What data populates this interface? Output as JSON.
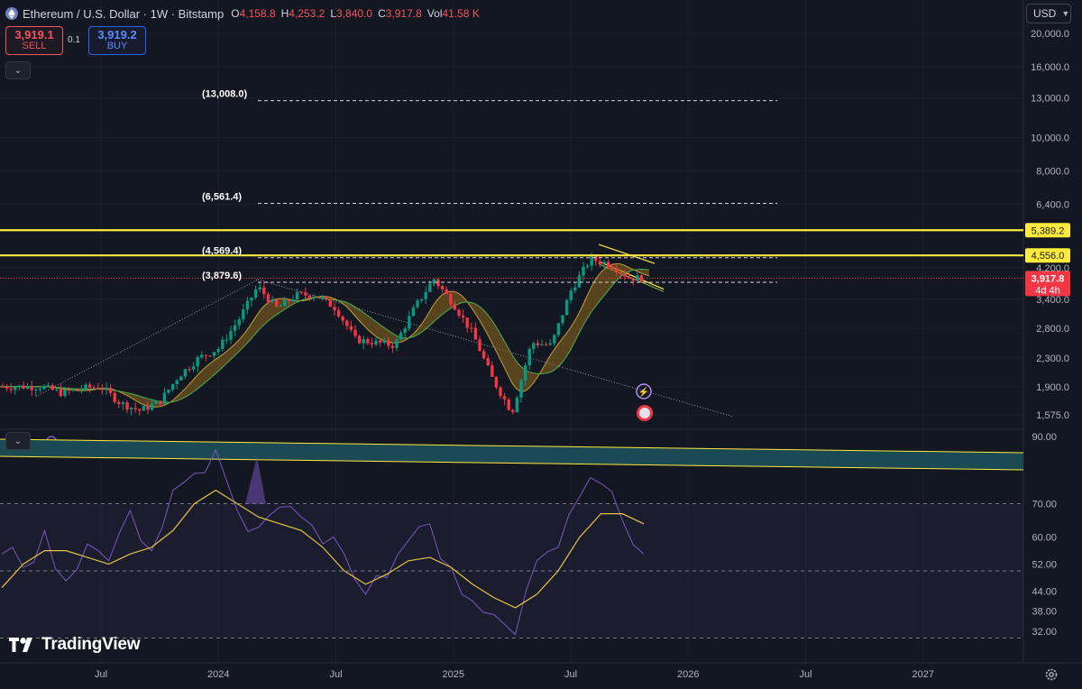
{
  "header": {
    "title": "Ethereum / U.S. Dollar · 1W · Bitstamp",
    "open_label": "O",
    "open": "4,158.8",
    "high_label": "H",
    "high": "4,253.2",
    "low_label": "L",
    "low": "3,840.0",
    "close_label": "C",
    "close": "3,917.8",
    "vol_label": "Vol",
    "vol": "41.58 K"
  },
  "trade": {
    "sell_price": "3,919.1",
    "sell_label": "SELL",
    "spread": "0.1",
    "buy_price": "3,919.2",
    "buy_label": "BUY"
  },
  "currency": "USD",
  "logo_text": "TradingView",
  "colors": {
    "background": "#131722",
    "up": "#089981",
    "down": "#f23645",
    "level_line": "#ffeb3b",
    "rsi_line": "#7e57c2",
    "rsi_ma": "#e4c441",
    "channel_fill": "#1b4a55"
  },
  "chart_data": [
    {
      "type": "candlestick",
      "title": "Ethereum / U.S. Dollar · 1W · Bitstamp",
      "scale": "log",
      "ylim": [
        1450,
        23000
      ],
      "price_ticks": [
        "20,000.0",
        "16,000.0",
        "13,000.0",
        "10,000.0",
        "8,000.0",
        "6,400.0",
        "4,200.0",
        "3,400.0",
        "2,800.0",
        "2,300.0",
        "1,900.0",
        "1,575.0"
      ],
      "x_ticks": [
        "Jul",
        "2024",
        "Jul",
        "2025",
        "Jul",
        "2026",
        "Jul",
        "2027"
      ],
      "horizontal_levels": [
        {
          "label": "5,389.2",
          "value": 5389.2,
          "style": "solid"
        },
        {
          "label": "4,556.0",
          "value": 4556.0,
          "style": "solid"
        }
      ],
      "target_levels": [
        {
          "label": "(13,008.0)",
          "value": 13008.0
        },
        {
          "label": "(6,561.4)",
          "value": 6561.4
        },
        {
          "label": "(4,569.4)",
          "value": 4569.4
        },
        {
          "label": "(3,879.6)",
          "value": 3879.6
        }
      ],
      "last_price": {
        "label": "3,917.8",
        "countdown": "4d 4h"
      },
      "price_path": [
        [
          "2023-04",
          1900
        ],
        [
          "2023-05",
          1820
        ],
        [
          "2023-06",
          1880
        ],
        [
          "2023-07",
          1900
        ],
        [
          "2023-08",
          1700
        ],
        [
          "2023-09",
          1620
        ],
        [
          "2023-10",
          1720
        ],
        [
          "2023-11",
          2050
        ],
        [
          "2023-12",
          2300
        ],
        [
          "2024-01",
          2450
        ],
        [
          "2024-02",
          2950
        ],
        [
          "2024-03",
          3700
        ],
        [
          "2024-04",
          3200
        ],
        [
          "2024-05",
          3500
        ],
        [
          "2024-06",
          3500
        ],
        [
          "2024-07",
          3200
        ],
        [
          "2024-08",
          2600
        ],
        [
          "2024-09",
          2550
        ],
        [
          "2024-10",
          2500
        ],
        [
          "2024-11",
          3200
        ],
        [
          "2024-12",
          3900
        ],
        [
          "2025-01",
          3300
        ],
        [
          "2025-02",
          2700
        ],
        [
          "2025-03",
          2000
        ],
        [
          "2025-04",
          1600
        ],
        [
          "2025-05",
          2550
        ],
        [
          "2025-06",
          2500
        ],
        [
          "2025-07",
          3600
        ],
        [
          "2025-08",
          4450
        ],
        [
          "2025-09",
          4300
        ],
        [
          "2025-10",
          3917.8
        ]
      ],
      "moving_average_ribbon": {
        "colors": [
          "#8f6a1c",
          "#2e5a2e"
        ]
      }
    },
    {
      "type": "line",
      "title": "",
      "ylim": [
        28,
        95
      ],
      "y_ticks": [
        "90.00",
        "70.00",
        "60.00",
        "52.00",
        "44.00",
        "38.00",
        "32.00"
      ],
      "bands": [
        70,
        50,
        30
      ],
      "series": [
        {
          "color": "#7e57c2",
          "values": [
            55,
            51,
            62,
            47,
            58,
            53,
            68,
            56,
            74,
            79,
            86,
            68,
            63,
            69,
            66,
            58,
            55,
            43,
            48,
            59,
            64,
            51,
            41,
            37,
            31,
            53,
            57,
            72,
            76,
            65,
            55
          ]
        },
        {
          "color": "#e4c441",
          "values": [
            45,
            52,
            56,
            56,
            54,
            52,
            55,
            57,
            62,
            70,
            74,
            70,
            66,
            64,
            62,
            57,
            50,
            46,
            49,
            53,
            54,
            51,
            46,
            42,
            39,
            43,
            50,
            60,
            67,
            67,
            64
          ]
        }
      ]
    }
  ]
}
